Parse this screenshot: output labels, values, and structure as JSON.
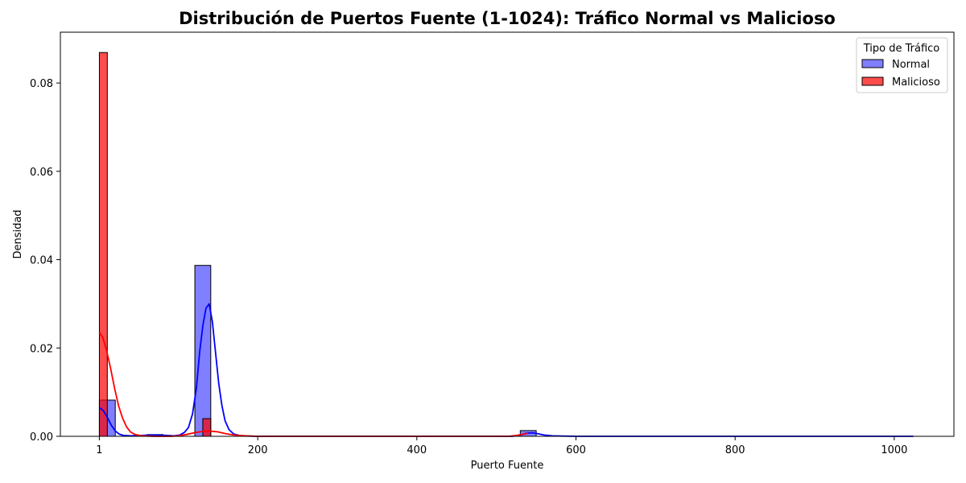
{
  "chart_data": {
    "type": "histogram",
    "title": "Distribución de Puertos Fuente (1-1024): Tráfico Normal vs Malicioso",
    "xlabel": "Puerto Fuente",
    "ylabel": "Densidad",
    "xlim": [
      -48,
      1075
    ],
    "ylim": [
      0,
      0.0915
    ],
    "x_ticks": [
      {
        "value": 1,
        "label": "1"
      },
      {
        "value": 200,
        "label": "200"
      },
      {
        "value": 400,
        "label": "400"
      },
      {
        "value": 600,
        "label": "600"
      },
      {
        "value": 800,
        "label": "800"
      },
      {
        "value": 1000,
        "label": "1000"
      }
    ],
    "y_ticks": [
      {
        "value": 0,
        "label": "0.00"
      },
      {
        "value": 0.02,
        "label": "0.02"
      },
      {
        "value": 0.04,
        "label": "0.04"
      },
      {
        "value": 0.06,
        "label": "0.06"
      },
      {
        "value": 0.08,
        "label": "0.08"
      }
    ],
    "grid": false,
    "legend": {
      "title": "Tipo de Tráfico",
      "placement": "top-right"
    },
    "series": [
      {
        "name": "Normal",
        "color": "#0000ff",
        "fill": "rgba(0,0,255,0.5)",
        "bins": [
          {
            "x0": 1,
            "x1": 21,
            "y": 0.0082
          },
          {
            "x0": 61,
            "x1": 81,
            "y": 0.0004
          },
          {
            "x0": 121,
            "x1": 141,
            "y": 0.0387
          },
          {
            "x0": 530,
            "x1": 550,
            "y": 0.0013
          }
        ],
        "kde": [
          [
            1,
            0.0065
          ],
          [
            6,
            0.0058
          ],
          [
            11,
            0.0043
          ],
          [
            16,
            0.0025
          ],
          [
            21,
            0.0012
          ],
          [
            26,
            0.0005
          ],
          [
            31,
            0.0002
          ],
          [
            40,
            0.0001
          ],
          [
            55,
            0.0002
          ],
          [
            65,
            0.0003
          ],
          [
            75,
            0.0003
          ],
          [
            85,
            0.0002
          ],
          [
            95,
            0.0001
          ],
          [
            102,
            0.0003
          ],
          [
            108,
            0.0009
          ],
          [
            113,
            0.002
          ],
          [
            118,
            0.005
          ],
          [
            123,
            0.011
          ],
          [
            127,
            0.019
          ],
          [
            131,
            0.025
          ],
          [
            135,
            0.029
          ],
          [
            139,
            0.03
          ],
          [
            143,
            0.026
          ],
          [
            147,
            0.019
          ],
          [
            151,
            0.012
          ],
          [
            155,
            0.007
          ],
          [
            159,
            0.0035
          ],
          [
            164,
            0.0015
          ],
          [
            170,
            0.0005
          ],
          [
            180,
            0.0001
          ],
          [
            200,
            0
          ],
          [
            400,
            0
          ],
          [
            520,
            0
          ],
          [
            530,
            0.0003
          ],
          [
            538,
            0.0007
          ],
          [
            545,
            0.0008
          ],
          [
            552,
            0.0006
          ],
          [
            560,
            0.0003
          ],
          [
            570,
            0.0001
          ],
          [
            600,
            0
          ],
          [
            800,
            0
          ],
          [
            1024,
            0
          ]
        ]
      },
      {
        "name": "Malicioso",
        "color": "#ff0000",
        "fill": "rgba(255,0,0,0.7)",
        "bins": [
          {
            "x0": 1,
            "x1": 11,
            "y": 0.0869
          },
          {
            "x0": 131,
            "x1": 141,
            "y": 0.004
          }
        ],
        "kde": [
          [
            1,
            0.0235
          ],
          [
            5,
            0.0225
          ],
          [
            10,
            0.0195
          ],
          [
            15,
            0.0155
          ],
          [
            20,
            0.011
          ],
          [
            25,
            0.007
          ],
          [
            30,
            0.0042
          ],
          [
            35,
            0.0022
          ],
          [
            40,
            0.001
          ],
          [
            46,
            0.0004
          ],
          [
            55,
            0.0001
          ],
          [
            70,
            0
          ],
          [
            90,
            0
          ],
          [
            100,
            0.0001
          ],
          [
            110,
            0.0004
          ],
          [
            120,
            0.0008
          ],
          [
            130,
            0.0011
          ],
          [
            140,
            0.0012
          ],
          [
            150,
            0.001
          ],
          [
            160,
            0.0006
          ],
          [
            170,
            0.0003
          ],
          [
            185,
            0.0001
          ],
          [
            200,
            0
          ],
          [
            400,
            0
          ],
          [
            515,
            0
          ],
          [
            525,
            0.0002
          ],
          [
            535,
            0.0005
          ],
          [
            540,
            0.0007
          ]
        ]
      }
    ]
  }
}
